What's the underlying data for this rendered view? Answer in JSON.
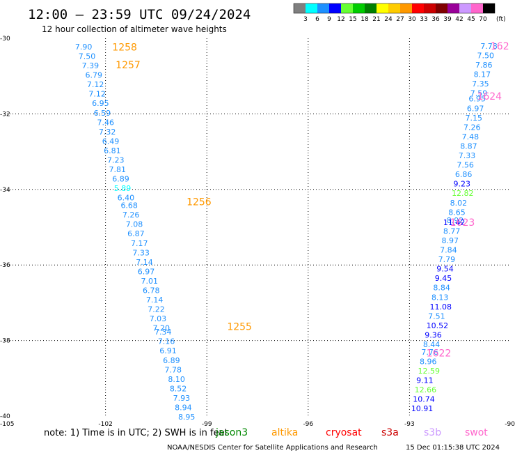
{
  "header": {
    "title": "12:00 — 23:59 UTC 09/24/2024",
    "subtitle": "12 hour collection of altimeter wave heights"
  },
  "legend": {
    "unit": "(ft)",
    "bins": [
      {
        "label": "3",
        "color": "#7f7f7f"
      },
      {
        "label": "6",
        "color": "#00ffff"
      },
      {
        "label": "9",
        "color": "#1e90ff"
      },
      {
        "label": "12",
        "color": "#0000ff"
      },
      {
        "label": "15",
        "color": "#66ff33"
      },
      {
        "label": "18",
        "color": "#00cc00"
      },
      {
        "label": "21",
        "color": "#007f00"
      },
      {
        "label": "24",
        "color": "#ffff00"
      },
      {
        "label": "27",
        "color": "#ffcc00"
      },
      {
        "label": "30",
        "color": "#ff9900"
      },
      {
        "label": "33",
        "color": "#ff0000"
      },
      {
        "label": "36",
        "color": "#cc0000"
      },
      {
        "label": "39",
        "color": "#7f0000"
      },
      {
        "label": "42",
        "color": "#990099"
      },
      {
        "label": "45",
        "color": "#cc99ff"
      },
      {
        "label": "70",
        "color": "#ff66cc"
      },
      {
        "label": "",
        "color": "#000000"
      }
    ]
  },
  "chart_data": {
    "type": "scatter",
    "xlim": [
      -105,
      -90
    ],
    "ylim": [
      -40,
      -30
    ],
    "x_ticks": [
      "-105",
      "-102",
      "-99",
      "-96",
      "-93",
      "-90"
    ],
    "y_ticks": [
      "-30",
      "-32",
      "-34",
      "-36",
      "-38",
      "-40"
    ],
    "grid": true,
    "track_labels": [
      {
        "text": "1258",
        "lon": -101.8,
        "lat": -30.23,
        "color": "#ff9900"
      },
      {
        "text": "1257",
        "lon": -101.7,
        "lat": -30.7,
        "color": "#ff9900"
      },
      {
        "text": "1256",
        "lon": -99.6,
        "lat": -34.33,
        "color": "#ff9900"
      },
      {
        "text": "1255",
        "lon": -98.4,
        "lat": -37.63,
        "color": "#ff9900"
      },
      {
        "text": "162",
        "lon": -90.6,
        "lat": -30.2,
        "color": "#ff66cc"
      },
      {
        "text": "1624",
        "lon": -91.0,
        "lat": -31.53,
        "color": "#ff66cc"
      },
      {
        "text": "1623",
        "lon": -91.8,
        "lat": -34.87,
        "color": "#ff66cc"
      },
      {
        "text": "1622",
        "lon": -92.5,
        "lat": -38.33,
        "color": "#ff66cc"
      }
    ],
    "west_track": [
      {
        "v": "7.90",
        "lon": -102.9,
        "lat": -30.22,
        "c": "#1e90ff"
      },
      {
        "v": "7.50",
        "lon": -102.8,
        "lat": -30.47,
        "c": "#1e90ff"
      },
      {
        "v": "7.39",
        "lon": -102.7,
        "lat": -30.72,
        "c": "#1e90ff"
      },
      {
        "v": "6.79",
        "lon": -102.6,
        "lat": -30.97,
        "c": "#1e90ff"
      },
      {
        "v": "7.12",
        "lon": -102.55,
        "lat": -31.22,
        "c": "#1e90ff"
      },
      {
        "v": "7.12",
        "lon": -102.5,
        "lat": -31.47,
        "c": "#1e90ff"
      },
      {
        "v": "6.95",
        "lon": -102.4,
        "lat": -31.72,
        "c": "#1e90ff"
      },
      {
        "v": "6.59",
        "lon": -102.35,
        "lat": -31.97,
        "c": "#1e90ff"
      },
      {
        "v": "7.46",
        "lon": -102.25,
        "lat": -32.22,
        "c": "#1e90ff"
      },
      {
        "v": "7.32",
        "lon": -102.2,
        "lat": -32.47,
        "c": "#1e90ff"
      },
      {
        "v": "6.49",
        "lon": -102.1,
        "lat": -32.72,
        "c": "#1e90ff"
      },
      {
        "v": "6.81",
        "lon": -102.05,
        "lat": -32.97,
        "c": "#1e90ff"
      },
      {
        "v": "7.23",
        "lon": -101.95,
        "lat": -33.22,
        "c": "#1e90ff"
      },
      {
        "v": "7.81",
        "lon": -101.9,
        "lat": -33.47,
        "c": "#1e90ff"
      },
      {
        "v": "6.89",
        "lon": -101.8,
        "lat": -33.72,
        "c": "#1e90ff"
      },
      {
        "v": "5.89",
        "lon": -101.75,
        "lat": -33.97,
        "c": "#00ffff"
      },
      {
        "v": "6.40",
        "lon": -101.65,
        "lat": -34.22,
        "c": "#1e90ff"
      },
      {
        "v": "6.68",
        "lon": -101.55,
        "lat": -34.42,
        "c": "#1e90ff"
      },
      {
        "v": "7.26",
        "lon": -101.5,
        "lat": -34.67,
        "c": "#1e90ff"
      },
      {
        "v": "7.08",
        "lon": -101.4,
        "lat": -34.92,
        "c": "#1e90ff"
      },
      {
        "v": "6.87",
        "lon": -101.35,
        "lat": -35.17,
        "c": "#1e90ff"
      },
      {
        "v": "7.17",
        "lon": -101.25,
        "lat": -35.42,
        "c": "#1e90ff"
      },
      {
        "v": "7.33",
        "lon": -101.2,
        "lat": -35.67,
        "c": "#1e90ff"
      },
      {
        "v": "7.14",
        "lon": -101.1,
        "lat": -35.92,
        "c": "#1e90ff"
      },
      {
        "v": "6.97",
        "lon": -101.05,
        "lat": -36.17,
        "c": "#1e90ff"
      },
      {
        "v": "7.01",
        "lon": -100.95,
        "lat": -36.42,
        "c": "#1e90ff"
      },
      {
        "v": "6.78",
        "lon": -100.9,
        "lat": -36.67,
        "c": "#1e90ff"
      },
      {
        "v": "7.14",
        "lon": -100.8,
        "lat": -36.92,
        "c": "#1e90ff"
      },
      {
        "v": "7.22",
        "lon": -100.75,
        "lat": -37.17,
        "c": "#1e90ff"
      },
      {
        "v": "7.03",
        "lon": -100.7,
        "lat": -37.42,
        "c": "#1e90ff"
      },
      {
        "v": "7.20",
        "lon": -100.6,
        "lat": -37.67,
        "c": "#1e90ff"
      },
      {
        "v": "7.34",
        "lon": -100.55,
        "lat": -37.77,
        "c": "#1e90ff"
      },
      {
        "v": "7.16",
        "lon": -100.45,
        "lat": -38.02,
        "c": "#1e90ff"
      },
      {
        "v": "6.91",
        "lon": -100.4,
        "lat": -38.27,
        "c": "#1e90ff"
      },
      {
        "v": "6.89",
        "lon": -100.3,
        "lat": -38.52,
        "c": "#1e90ff"
      },
      {
        "v": "7.78",
        "lon": -100.25,
        "lat": -38.77,
        "c": "#1e90ff"
      },
      {
        "v": "8.10",
        "lon": -100.15,
        "lat": -39.02,
        "c": "#1e90ff"
      },
      {
        "v": "8.52",
        "lon": -100.1,
        "lat": -39.27,
        "c": "#1e90ff"
      },
      {
        "v": "7.93",
        "lon": -100.0,
        "lat": -39.52,
        "c": "#1e90ff"
      },
      {
        "v": "8.94",
        "lon": -99.95,
        "lat": -39.77,
        "c": "#1e90ff"
      },
      {
        "v": "8.95",
        "lon": -99.85,
        "lat": -40.02,
        "c": "#1e90ff"
      }
    ],
    "east_track": [
      {
        "v": "7.78",
        "lon": -90.9,
        "lat": -30.2,
        "c": "#1e90ff"
      },
      {
        "v": "7.50",
        "lon": -91.0,
        "lat": -30.45,
        "c": "#1e90ff"
      },
      {
        "v": "7.86",
        "lon": -91.05,
        "lat": -30.7,
        "c": "#1e90ff"
      },
      {
        "v": "8.17",
        "lon": -91.1,
        "lat": -30.95,
        "c": "#1e90ff"
      },
      {
        "v": "7.35",
        "lon": -91.15,
        "lat": -31.2,
        "c": "#1e90ff"
      },
      {
        "v": "7.59",
        "lon": -91.2,
        "lat": -31.45,
        "c": "#1e90ff"
      },
      {
        "v": "6.95",
        "lon": -91.25,
        "lat": -31.6,
        "c": "#1e90ff"
      },
      {
        "v": "6.97",
        "lon": -91.3,
        "lat": -31.85,
        "c": "#1e90ff"
      },
      {
        "v": "7.15",
        "lon": -91.35,
        "lat": -32.1,
        "c": "#1e90ff"
      },
      {
        "v": "7.26",
        "lon": -91.4,
        "lat": -32.35,
        "c": "#1e90ff"
      },
      {
        "v": "7.48",
        "lon": -91.45,
        "lat": -32.6,
        "c": "#1e90ff"
      },
      {
        "v": "8.87",
        "lon": -91.5,
        "lat": -32.85,
        "c": "#1e90ff"
      },
      {
        "v": "7.33",
        "lon": -91.55,
        "lat": -33.1,
        "c": "#1e90ff"
      },
      {
        "v": "7.56",
        "lon": -91.6,
        "lat": -33.35,
        "c": "#1e90ff"
      },
      {
        "v": "6.86",
        "lon": -91.65,
        "lat": -33.6,
        "c": "#1e90ff"
      },
      {
        "v": "9.23",
        "lon": -91.7,
        "lat": -33.85,
        "c": "#0000ff"
      },
      {
        "v": "12.82",
        "lon": -91.75,
        "lat": -34.1,
        "c": "#66ff33"
      },
      {
        "v": "8.02",
        "lon": -91.8,
        "lat": -34.35,
        "c": "#1e90ff"
      },
      {
        "v": "8.65",
        "lon": -91.85,
        "lat": -34.6,
        "c": "#1e90ff"
      },
      {
        "v": "8.92",
        "lon": -91.9,
        "lat": -34.82,
        "c": "#1e90ff"
      },
      {
        "v": "11.42",
        "lon": -92.0,
        "lat": -34.87,
        "c": "#0000ff"
      },
      {
        "v": "8.77",
        "lon": -92.0,
        "lat": -35.1,
        "c": "#1e90ff"
      },
      {
        "v": "8.97",
        "lon": -92.05,
        "lat": -35.35,
        "c": "#1e90ff"
      },
      {
        "v": "7.84",
        "lon": -92.1,
        "lat": -35.6,
        "c": "#1e90ff"
      },
      {
        "v": "7.79",
        "lon": -92.15,
        "lat": -35.85,
        "c": "#1e90ff"
      },
      {
        "v": "9.54",
        "lon": -92.2,
        "lat": -36.1,
        "c": "#0000ff"
      },
      {
        "v": "9.45",
        "lon": -92.25,
        "lat": -36.35,
        "c": "#0000ff"
      },
      {
        "v": "8.84",
        "lon": -92.3,
        "lat": -36.6,
        "c": "#1e90ff"
      },
      {
        "v": "8.13",
        "lon": -92.35,
        "lat": -36.85,
        "c": "#1e90ff"
      },
      {
        "v": "11.08",
        "lon": -92.4,
        "lat": -37.1,
        "c": "#0000ff"
      },
      {
        "v": "7.51",
        "lon": -92.45,
        "lat": -37.35,
        "c": "#1e90ff"
      },
      {
        "v": "10.52",
        "lon": -92.5,
        "lat": -37.6,
        "c": "#0000ff"
      },
      {
        "v": "9.36",
        "lon": -92.55,
        "lat": -37.85,
        "c": "#0000ff"
      },
      {
        "v": "8.44",
        "lon": -92.6,
        "lat": -38.1,
        "c": "#1e90ff"
      },
      {
        "v": "7.76",
        "lon": -92.65,
        "lat": -38.3,
        "c": "#1e90ff"
      },
      {
        "v": "8.96",
        "lon": -92.7,
        "lat": -38.55,
        "c": "#1e90ff"
      },
      {
        "v": "12.59",
        "lon": -92.75,
        "lat": -38.8,
        "c": "#66ff33"
      },
      {
        "v": "9.11",
        "lon": -92.8,
        "lat": -39.05,
        "c": "#0000ff"
      },
      {
        "v": "12.66",
        "lon": -92.85,
        "lat": -39.3,
        "c": "#66ff33"
      },
      {
        "v": "10.74",
        "lon": -92.9,
        "lat": -39.55,
        "c": "#0000ff"
      },
      {
        "v": "10.91",
        "lon": -92.95,
        "lat": -39.8,
        "c": "#0000ff"
      }
    ]
  },
  "footer": {
    "note": "note: 1) Time is in UTC; 2) SWH is in feet",
    "satellites": [
      {
        "name": "jason3",
        "color": "#008800"
      },
      {
        "name": "altika",
        "color": "#ff9900"
      },
      {
        "name": "cryosat",
        "color": "#ff0000"
      },
      {
        "name": "s3a",
        "color": "#cc0000"
      },
      {
        "name": "s3b",
        "color": "#cc99ff"
      },
      {
        "name": "swot",
        "color": "#ff66cc"
      }
    ],
    "credit": "NOAA/NESDIS Center for Satellite Applications and Research",
    "timestamp": "15 Dec 01:15:38 UTC 2024"
  }
}
